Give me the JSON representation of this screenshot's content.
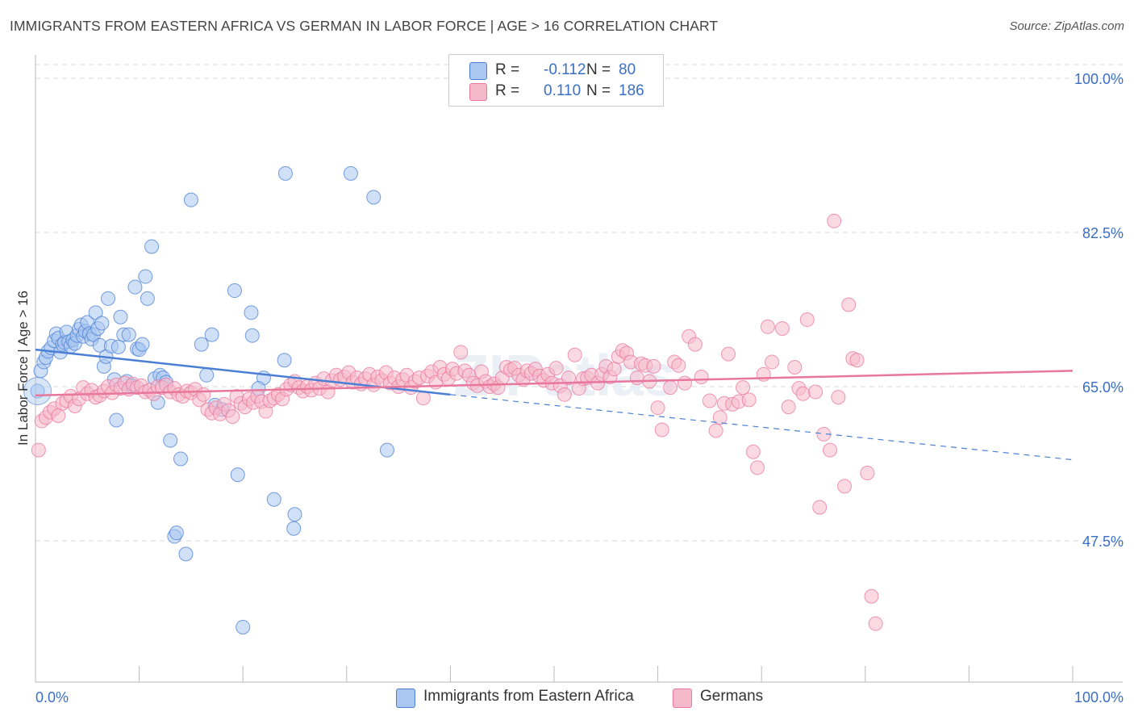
{
  "title": "IMMIGRANTS FROM EASTERN AFRICA VS GERMAN IN LABOR FORCE | AGE > 16 CORRELATION CHART",
  "source": "Source: ZipAtlas.com",
  "watermark": "ZIPatlas",
  "colors": {
    "blue": "#4a7fd4",
    "blue_fill": "#a9c7f0",
    "pink": "#e8779e",
    "pink_fill": "#f5b9cc",
    "grid": "#d9d9d9",
    "tick_text": "#3b6fc6"
  },
  "legend": {
    "rows": [
      {
        "r_label": "R =",
        "r_value": "-0.112",
        "n_label": "N =",
        "n_value": "80"
      },
      {
        "r_label": "R =",
        "r_value": "0.110",
        "n_label": "N =",
        "n_value": "186"
      }
    ]
  },
  "bottom_legend": [
    "Immigrants from Eastern Africa",
    "Germans"
  ],
  "chart_data": {
    "type": "scatter",
    "ylabel": "In Labor Force | Age > 16",
    "xlabel": "",
    "xlim": [
      0,
      100
    ],
    "ylim": [
      30,
      100
    ],
    "x_tick_labels": [
      "0.0%",
      "100.0%"
    ],
    "y_ticks": [
      47.5,
      65.0,
      82.5,
      100.0
    ],
    "y_tick_labels": [
      "47.5%",
      "65.0%",
      "82.5%",
      "100.0%"
    ],
    "grid": true,
    "legend_position": "top-center",
    "series": [
      {
        "name": "Immigrants from Eastern Africa",
        "color": "#4a7fd4",
        "trend": {
          "x0": 0,
          "y0": 69.2,
          "x1": 40,
          "y1": 64.1,
          "dash_to_x": 100,
          "dash_to_y": 56.7
        },
        "points": [
          [
            0.2,
            64.5
          ],
          [
            0.5,
            66.8
          ],
          [
            0.8,
            67.8
          ],
          [
            1.0,
            68.3
          ],
          [
            1.2,
            69.0
          ],
          [
            1.5,
            69.4
          ],
          [
            1.8,
            70.2
          ],
          [
            2.0,
            71.0
          ],
          [
            2.2,
            70.5
          ],
          [
            2.4,
            68.9
          ],
          [
            2.6,
            69.8
          ],
          [
            2.8,
            70.0
          ],
          [
            3.0,
            71.2
          ],
          [
            3.2,
            70.1
          ],
          [
            3.4,
            69.6
          ],
          [
            3.6,
            70.3
          ],
          [
            3.8,
            69.9
          ],
          [
            4.0,
            70.8
          ],
          [
            4.2,
            71.5
          ],
          [
            4.4,
            72.0
          ],
          [
            4.6,
            70.7
          ],
          [
            4.8,
            71.3
          ],
          [
            5.0,
            72.3
          ],
          [
            5.2,
            71.0
          ],
          [
            5.4,
            70.4
          ],
          [
            5.6,
            70.9
          ],
          [
            5.8,
            73.4
          ],
          [
            6.0,
            71.6
          ],
          [
            6.2,
            69.7
          ],
          [
            6.4,
            72.2
          ],
          [
            6.6,
            67.3
          ],
          [
            6.8,
            68.4
          ],
          [
            7.0,
            75.0
          ],
          [
            7.3,
            69.6
          ],
          [
            7.6,
            65.8
          ],
          [
            7.8,
            61.2
          ],
          [
            8.0,
            69.5
          ],
          [
            8.2,
            72.9
          ],
          [
            8.5,
            70.9
          ],
          [
            8.8,
            65.6
          ],
          [
            9.0,
            70.9
          ],
          [
            9.3,
            65.1
          ],
          [
            9.6,
            76.3
          ],
          [
            9.8,
            69.3
          ],
          [
            10.0,
            69.2
          ],
          [
            10.3,
            69.8
          ],
          [
            10.6,
            77.5
          ],
          [
            10.8,
            75.0
          ],
          [
            11.2,
            80.9
          ],
          [
            11.5,
            65.9
          ],
          [
            11.8,
            63.2
          ],
          [
            12.0,
            66.3
          ],
          [
            12.3,
            66.0
          ],
          [
            12.6,
            65.5
          ],
          [
            13.0,
            58.9
          ],
          [
            13.4,
            48.0
          ],
          [
            13.6,
            48.4
          ],
          [
            14.0,
            56.8
          ],
          [
            14.5,
            46.0
          ],
          [
            15.0,
            86.2
          ],
          [
            16.0,
            69.8
          ],
          [
            16.5,
            66.3
          ],
          [
            17.0,
            70.9
          ],
          [
            17.3,
            62.9
          ],
          [
            18.0,
            62.4
          ],
          [
            19.2,
            75.9
          ],
          [
            19.5,
            55.0
          ],
          [
            20.0,
            37.7
          ],
          [
            20.8,
            73.4
          ],
          [
            20.9,
            70.8
          ],
          [
            22.0,
            66.0
          ],
          [
            23.0,
            52.2
          ],
          [
            24.1,
            89.2
          ],
          [
            24.0,
            68.0
          ],
          [
            25.0,
            50.5
          ],
          [
            24.9,
            48.9
          ],
          [
            30.4,
            89.2
          ],
          [
            32.6,
            86.5
          ],
          [
            33.9,
            57.8
          ],
          [
            21.5,
            64.8
          ]
        ]
      },
      {
        "name": "Germans",
        "color": "#e8779e",
        "trend": {
          "x0": 0,
          "y0": 64.0,
          "x1": 100,
          "y1": 66.8
        },
        "points": [
          [
            0.3,
            57.8
          ],
          [
            0.6,
            61.1
          ],
          [
            1.0,
            61.5
          ],
          [
            1.4,
            62.1
          ],
          [
            1.8,
            62.5
          ],
          [
            2.2,
            61.7
          ],
          [
            2.6,
            63.1
          ],
          [
            3.0,
            63.4
          ],
          [
            3.4,
            63.9
          ],
          [
            3.8,
            62.8
          ],
          [
            4.2,
            63.6
          ],
          [
            4.6,
            64.9
          ],
          [
            5.0,
            64.2
          ],
          [
            5.4,
            64.6
          ],
          [
            5.8,
            63.8
          ],
          [
            6.2,
            64.0
          ],
          [
            6.6,
            64.5
          ],
          [
            7.0,
            65.0
          ],
          [
            7.4,
            64.3
          ],
          [
            7.8,
            65.2
          ],
          [
            8.2,
            64.8
          ],
          [
            8.6,
            65.4
          ],
          [
            9.0,
            64.7
          ],
          [
            9.4,
            65.3
          ],
          [
            9.8,
            64.9
          ],
          [
            10.2,
            65.1
          ],
          [
            10.6,
            64.4
          ],
          [
            11.0,
            64.6
          ],
          [
            11.4,
            64.2
          ],
          [
            11.8,
            65.0
          ],
          [
            12.2,
            64.9
          ],
          [
            12.6,
            65.2
          ],
          [
            13.0,
            64.4
          ],
          [
            13.4,
            64.8
          ],
          [
            13.8,
            64.1
          ],
          [
            14.2,
            63.9
          ],
          [
            14.6,
            64.5
          ],
          [
            15.0,
            64.3
          ],
          [
            15.4,
            64.7
          ],
          [
            15.8,
            63.5
          ],
          [
            16.2,
            64.1
          ],
          [
            16.6,
            62.4
          ],
          [
            17.0,
            62.0
          ],
          [
            17.4,
            62.6
          ],
          [
            17.8,
            61.9
          ],
          [
            18.2,
            63.0
          ],
          [
            18.6,
            62.3
          ],
          [
            19.0,
            61.6
          ],
          [
            19.4,
            63.9
          ],
          [
            19.8,
            63.1
          ],
          [
            20.2,
            62.7
          ],
          [
            20.6,
            63.6
          ],
          [
            21.0,
            63.2
          ],
          [
            21.4,
            63.9
          ],
          [
            21.8,
            63.3
          ],
          [
            22.2,
            62.2
          ],
          [
            22.6,
            63.4
          ],
          [
            23.0,
            63.7
          ],
          [
            23.4,
            64.1
          ],
          [
            23.8,
            63.6
          ],
          [
            24.2,
            64.7
          ],
          [
            24.6,
            65.2
          ],
          [
            25.0,
            65.6
          ],
          [
            25.4,
            64.9
          ],
          [
            25.8,
            64.5
          ],
          [
            26.2,
            65.0
          ],
          [
            26.6,
            64.6
          ],
          [
            27.0,
            65.4
          ],
          [
            27.4,
            64.8
          ],
          [
            27.8,
            65.9
          ],
          [
            28.2,
            64.4
          ],
          [
            28.6,
            65.7
          ],
          [
            29.0,
            66.3
          ],
          [
            29.4,
            65.8
          ],
          [
            29.8,
            66.1
          ],
          [
            30.2,
            66.6
          ],
          [
            30.6,
            65.5
          ],
          [
            31.0,
            66.0
          ],
          [
            31.4,
            65.3
          ],
          [
            31.8,
            65.9
          ],
          [
            32.2,
            66.4
          ],
          [
            32.6,
            65.2
          ],
          [
            33.0,
            66.1
          ],
          [
            33.4,
            65.7
          ],
          [
            33.8,
            66.6
          ],
          [
            34.2,
            65.4
          ],
          [
            34.6,
            66.0
          ],
          [
            35.0,
            65.0
          ],
          [
            35.4,
            65.8
          ],
          [
            35.8,
            66.3
          ],
          [
            36.2,
            64.9
          ],
          [
            36.6,
            65.6
          ],
          [
            37.0,
            66.0
          ],
          [
            37.4,
            63.7
          ],
          [
            37.8,
            66.2
          ],
          [
            38.2,
            66.7
          ],
          [
            38.6,
            65.5
          ],
          [
            39.0,
            67.2
          ],
          [
            39.4,
            66.4
          ],
          [
            39.8,
            65.9
          ],
          [
            40.2,
            67.0
          ],
          [
            40.6,
            66.5
          ],
          [
            41.0,
            68.9
          ],
          [
            41.4,
            66.8
          ],
          [
            41.8,
            66.3
          ],
          [
            42.2,
            65.4
          ],
          [
            42.6,
            65.1
          ],
          [
            43.0,
            66.7
          ],
          [
            43.4,
            65.6
          ],
          [
            43.8,
            65.0
          ],
          [
            44.2,
            65.3
          ],
          [
            44.6,
            64.9
          ],
          [
            45.0,
            66.0
          ],
          [
            45.4,
            67.2
          ],
          [
            45.8,
            66.9
          ],
          [
            46.2,
            67.1
          ],
          [
            46.6,
            66.3
          ],
          [
            47.0,
            65.8
          ],
          [
            47.4,
            66.8
          ],
          [
            47.8,
            66.5
          ],
          [
            48.2,
            67.0
          ],
          [
            48.6,
            66.2
          ],
          [
            49.0,
            65.7
          ],
          [
            49.4,
            66.4
          ],
          [
            49.8,
            65.4
          ],
          [
            50.2,
            67.1
          ],
          [
            50.6,
            65.1
          ],
          [
            51.0,
            64.1
          ],
          [
            51.4,
            66.0
          ],
          [
            52.0,
            68.6
          ],
          [
            52.4,
            64.8
          ],
          [
            52.8,
            65.9
          ],
          [
            53.2,
            66.0
          ],
          [
            53.6,
            66.3
          ],
          [
            54.2,
            65.4
          ],
          [
            54.6,
            66.4
          ],
          [
            55.0,
            67.3
          ],
          [
            55.4,
            66.1
          ],
          [
            55.8,
            67.0
          ],
          [
            56.2,
            68.4
          ],
          [
            56.6,
            69.1
          ],
          [
            57.0,
            68.8
          ],
          [
            57.4,
            67.8
          ],
          [
            58.0,
            66.0
          ],
          [
            58.4,
            67.6
          ],
          [
            58.8,
            67.4
          ],
          [
            59.2,
            65.6
          ],
          [
            59.6,
            67.3
          ],
          [
            60.0,
            62.6
          ],
          [
            60.4,
            60.1
          ],
          [
            61.2,
            64.9
          ],
          [
            61.6,
            67.8
          ],
          [
            62.0,
            67.4
          ],
          [
            62.6,
            65.4
          ],
          [
            63.0,
            70.7
          ],
          [
            63.6,
            69.8
          ],
          [
            64.2,
            66.1
          ],
          [
            65.0,
            63.4
          ],
          [
            65.6,
            60.0
          ],
          [
            66.0,
            61.5
          ],
          [
            66.4,
            63.1
          ],
          [
            66.8,
            68.7
          ],
          [
            67.2,
            63.0
          ],
          [
            67.8,
            63.3
          ],
          [
            68.2,
            64.9
          ],
          [
            68.8,
            63.5
          ],
          [
            69.2,
            57.6
          ],
          [
            69.6,
            55.8
          ],
          [
            70.2,
            66.4
          ],
          [
            70.6,
            71.8
          ],
          [
            71.0,
            67.8
          ],
          [
            72.0,
            71.6
          ],
          [
            72.6,
            62.7
          ],
          [
            73.2,
            67.2
          ],
          [
            73.6,
            64.8
          ],
          [
            74.0,
            64.2
          ],
          [
            74.4,
            72.6
          ],
          [
            75.2,
            64.4
          ],
          [
            75.6,
            51.3
          ],
          [
            76.0,
            59.6
          ],
          [
            76.6,
            57.8
          ],
          [
            77.0,
            83.8
          ],
          [
            77.4,
            63.8
          ],
          [
            78.0,
            53.7
          ],
          [
            78.4,
            74.3
          ],
          [
            78.8,
            68.2
          ],
          [
            79.2,
            68.0
          ],
          [
            80.2,
            55.2
          ],
          [
            80.6,
            41.2
          ],
          [
            81.0,
            38.1
          ]
        ]
      }
    ]
  }
}
